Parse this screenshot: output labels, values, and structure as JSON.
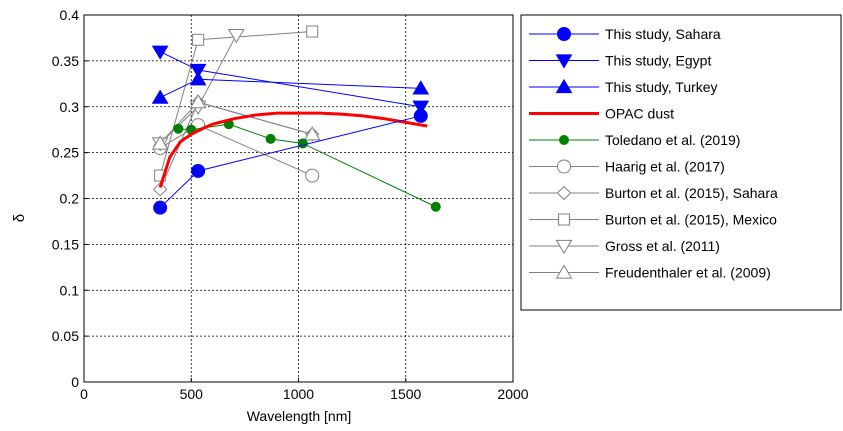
{
  "chart_data": {
    "type": "line",
    "xlabel": "Wavelength [nm]",
    "ylabel": "δ",
    "xlim": [
      0,
      2000
    ],
    "ylim": [
      0,
      0.4
    ],
    "xticks": [
      0,
      500,
      1000,
      1500,
      2000
    ],
    "yticks": [
      0,
      0.05,
      0.1,
      0.15,
      0.2,
      0.25,
      0.3,
      0.35,
      0.4
    ],
    "xtick_labels": [
      "0",
      "500",
      "1000",
      "1500",
      "2000"
    ],
    "ytick_labels": [
      "0",
      "0.05",
      "0.1",
      "0.15",
      "0.2",
      "0.25",
      "0.3",
      "0.35",
      "0.4"
    ],
    "grid": true,
    "legend_position": "outside-right",
    "series": [
      {
        "name": "This study, Sahara",
        "color": "#0000ff",
        "marker": "circle-filled",
        "x": [
          355,
          532,
          1570
        ],
        "y": [
          0.19,
          0.23,
          0.29
        ]
      },
      {
        "name": "This study, Egypt",
        "color": "#0000ff",
        "marker": "triangle-down-filled",
        "x": [
          355,
          532,
          1570
        ],
        "y": [
          0.36,
          0.34,
          0.3
        ]
      },
      {
        "name": "This study, Turkey",
        "color": "#0000ff",
        "marker": "triangle-up-filled",
        "x": [
          355,
          532,
          1570
        ],
        "y": [
          0.31,
          0.33,
          0.32
        ]
      },
      {
        "name": "OPAC dust",
        "color": "#ff0000",
        "marker": "none",
        "x": [
          355,
          400,
          450,
          500,
          550,
          600,
          700,
          800,
          900,
          1000,
          1100,
          1200,
          1300,
          1400,
          1500,
          1600
        ],
        "y": [
          0.212,
          0.245,
          0.262,
          0.27,
          0.276,
          0.281,
          0.287,
          0.291,
          0.293,
          0.293,
          0.293,
          0.292,
          0.29,
          0.287,
          0.283,
          0.279
        ]
      },
      {
        "name": "Toledano et al. (2019)",
        "color": "#008000",
        "marker": "circle-filled-small",
        "x": [
          440,
          500,
          675,
          870,
          1020,
          1640
        ],
        "y": [
          0.276,
          0.275,
          0.281,
          0.265,
          0.26,
          0.191
        ]
      },
      {
        "name": "Haarig et al. (2017)",
        "color": "#808080",
        "marker": "circle-open",
        "x": [
          355,
          532,
          1064
        ],
        "y": [
          0.255,
          0.28,
          0.225
        ]
      },
      {
        "name": "Burton et al. (2015), Sahara",
        "color": "#808080",
        "marker": "diamond-open",
        "x": [
          355,
          532,
          1064
        ],
        "y": [
          0.21,
          0.305,
          0.27
        ]
      },
      {
        "name": "Burton et al. (2015), Mexico",
        "color": "#808080",
        "marker": "square-open",
        "x": [
          355,
          532,
          1064
        ],
        "y": [
          0.225,
          0.373,
          0.382
        ]
      },
      {
        "name": "Gross et al. (2011)",
        "color": "#808080",
        "marker": "triangle-down-open",
        "x": [
          355,
          532,
          710
        ],
        "y": [
          0.26,
          0.3,
          0.378
        ]
      },
      {
        "name": "Freudenthaler et al. (2009)",
        "color": "#808080",
        "marker": "triangle-up-open",
        "x": [
          355,
          532,
          1064
        ],
        "y": [
          0.26,
          0.305,
          0.27
        ]
      }
    ]
  }
}
